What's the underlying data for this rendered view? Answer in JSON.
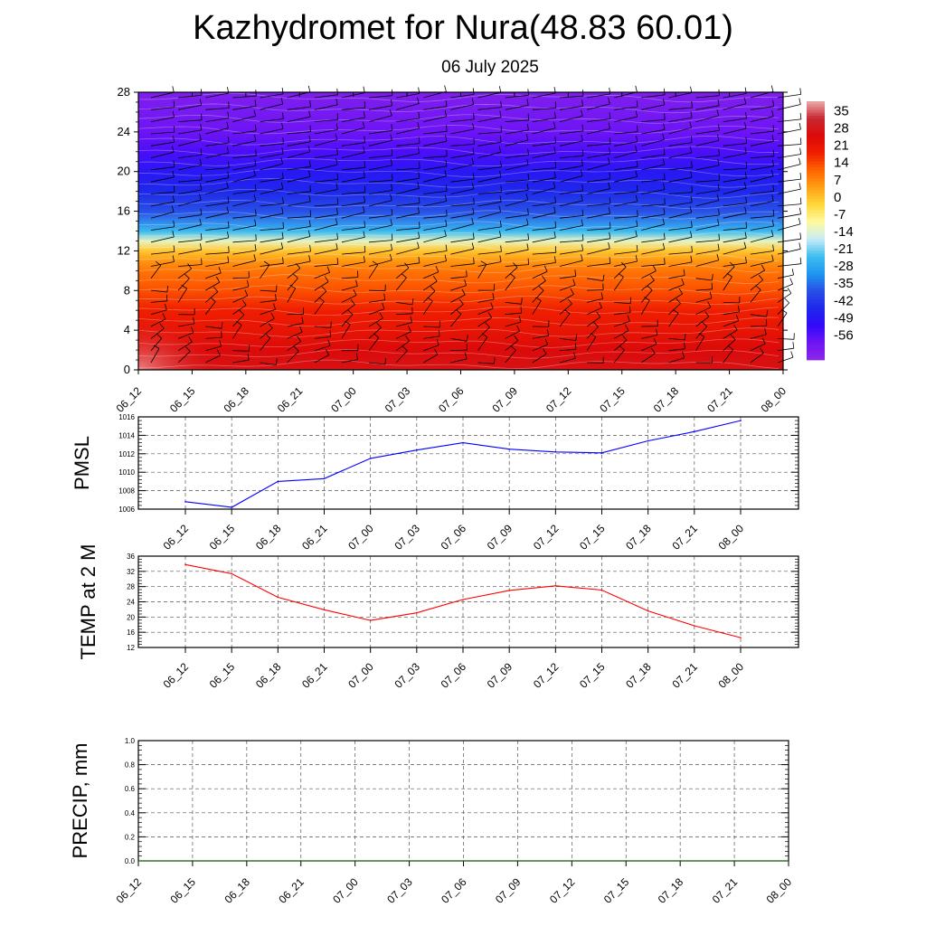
{
  "title": "Kazhydromet for Nura(48.83 60.01)",
  "subtitle": "06 July 2025",
  "time_labels": [
    "06_12",
    "06_15",
    "06_18",
    "06_21",
    "07_00",
    "07_03",
    "07_06",
    "07_09",
    "07_12",
    "07_15",
    "07_18",
    "07_21",
    "08_00"
  ],
  "chart_data": [
    {
      "type": "heatmap",
      "name": "cross-section",
      "x_categories": [
        "06_12",
        "06_15",
        "06_18",
        "06_21",
        "07_00",
        "07_03",
        "07_06",
        "07_09",
        "07_12",
        "07_15",
        "07_18",
        "07_21",
        "08_00"
      ],
      "ylim": [
        0,
        28
      ],
      "yticks": [
        0,
        4,
        8,
        12,
        16,
        20,
        24,
        28
      ],
      "colorbar_ticks": [
        35,
        28,
        21,
        14,
        7,
        0,
        -7,
        -14,
        -21,
        -28,
        -35,
        -42,
        -49,
        -56
      ],
      "colorbar_range": [
        -63,
        42
      ],
      "colorbar_placement": "right",
      "profile_heights": [
        0,
        2,
        4,
        6,
        8,
        10,
        11,
        12,
        13,
        14,
        16,
        18,
        20,
        22,
        24,
        26,
        28
      ],
      "profile_values": [
        30,
        28,
        24,
        21,
        16,
        12,
        8,
        2,
        -10,
        -22,
        -35,
        -42,
        -46,
        -52,
        -56,
        -58,
        -60
      ],
      "wind_barbs": true
    },
    {
      "type": "line",
      "name": "pmsl",
      "ylabel": "PMSL",
      "x": [
        "06_12",
        "06_15",
        "06_18",
        "06_21",
        "07_00",
        "07_03",
        "07_06",
        "07_09",
        "07_12",
        "07_15",
        "07_18",
        "07_21",
        "08_00"
      ],
      "values": [
        1006.8,
        1006.2,
        1009.0,
        1009.3,
        1011.5,
        1012.4,
        1013.2,
        1012.5,
        1012.2,
        1012.1,
        1013.4,
        1014.4,
        1015.6
      ],
      "ylim": [
        1006,
        1016
      ],
      "yticks": [
        1006,
        1008,
        1010,
        1012,
        1014,
        1016
      ],
      "color": "#0000ff",
      "grid": true
    },
    {
      "type": "line",
      "name": "temp-2m",
      "ylabel": "TEMP at 2 M",
      "x": [
        "06_12",
        "06_15",
        "06_18",
        "06_21",
        "07_00",
        "07_03",
        "07_06",
        "07_09",
        "07_12",
        "07_15",
        "07_18",
        "07_21",
        "08_00"
      ],
      "values": [
        33.8,
        31.4,
        25.2,
        21.9,
        19.1,
        21.1,
        24.6,
        27.0,
        28.2,
        27.1,
        21.6,
        17.7,
        14.6
      ],
      "ylim": [
        12,
        36
      ],
      "yticks": [
        12,
        16,
        20,
        24,
        28,
        32,
        36
      ],
      "color": "#ff0000",
      "grid": true
    },
    {
      "type": "line",
      "name": "precip",
      "ylabel": "PRECIP, mm",
      "x": [
        "06_12",
        "06_15",
        "06_18",
        "06_21",
        "07_00",
        "07_03",
        "07_06",
        "07_09",
        "07_12",
        "07_15",
        "07_18",
        "07_21",
        "08_00"
      ],
      "values": [
        0,
        0,
        0,
        0,
        0,
        0,
        0,
        0,
        0,
        0,
        0,
        0,
        0
      ],
      "ylim": [
        0,
        1
      ],
      "yticks": [
        "0.0",
        "0.2",
        "0.4",
        "0.6",
        "0.8",
        "1.0"
      ],
      "color": "#006400",
      "grid": true
    }
  ]
}
